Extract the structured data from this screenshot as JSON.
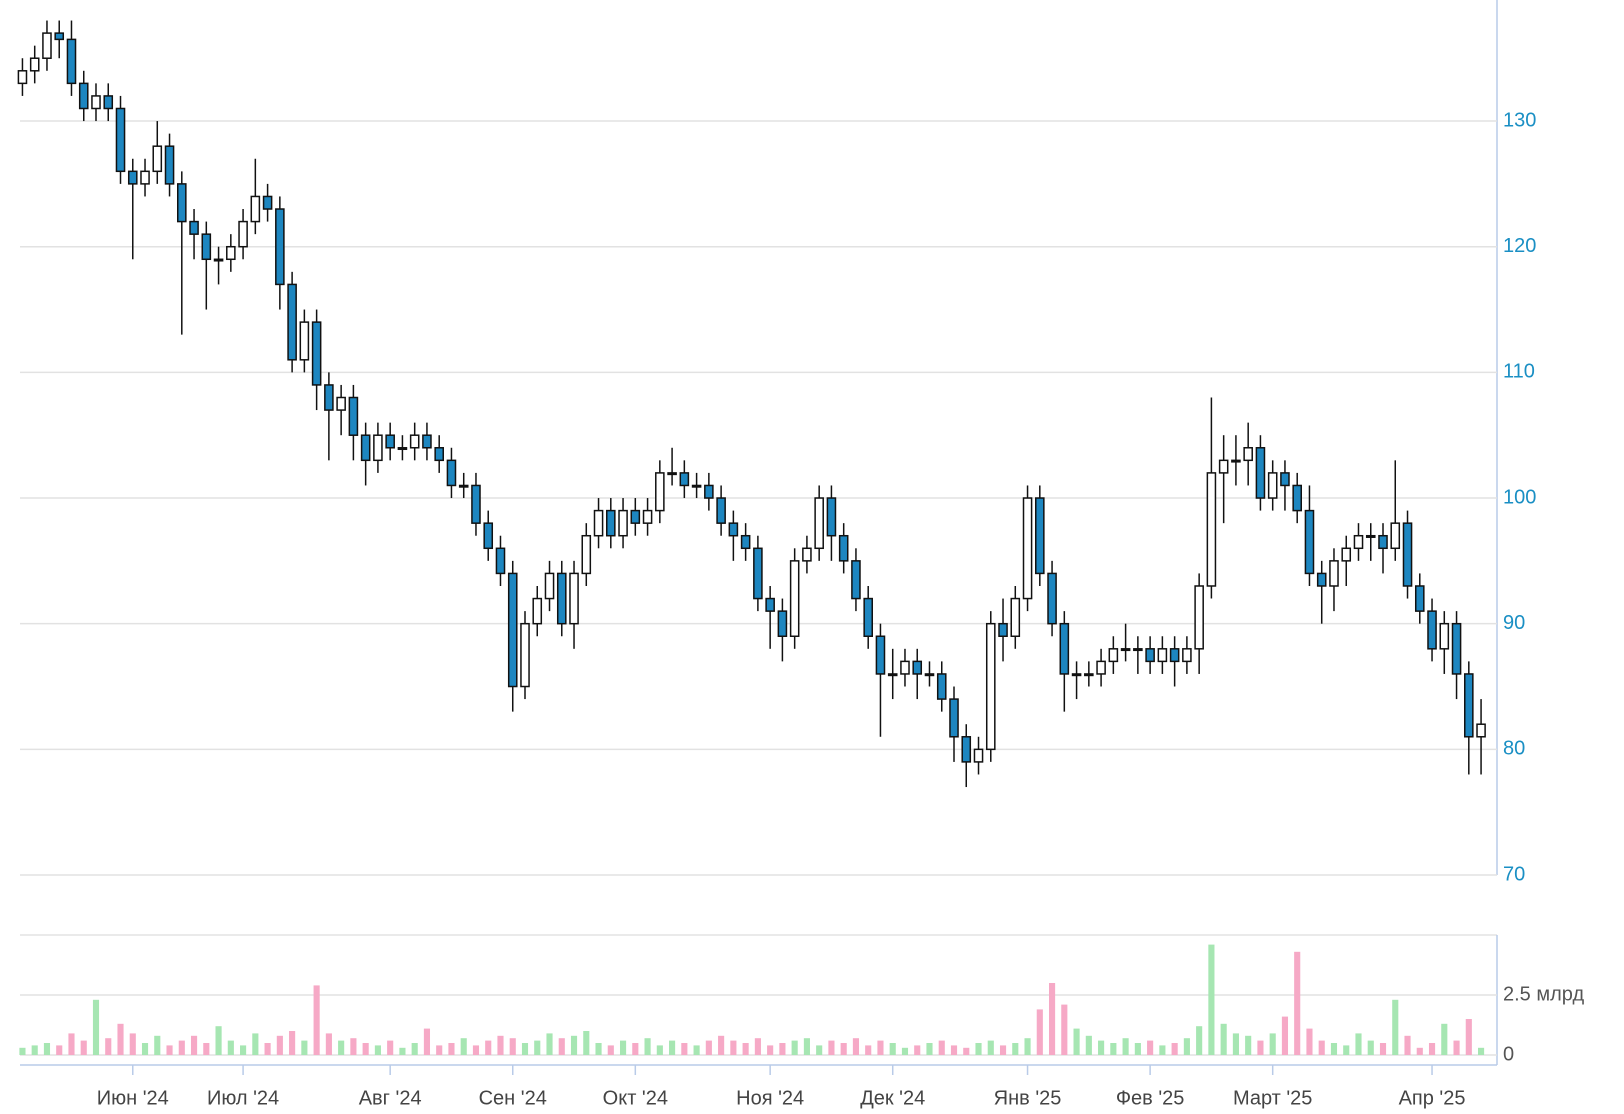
{
  "chart_data": {
    "type": "candlestick",
    "open": [
      133,
      134,
      135,
      137,
      136.5,
      133,
      131,
      132,
      131,
      126,
      125,
      126,
      128,
      125,
      122,
      121,
      119,
      119,
      120,
      122,
      124,
      123,
      117,
      111,
      114,
      109,
      107,
      108,
      105,
      103,
      105,
      104,
      104,
      105,
      104,
      103,
      101,
      101,
      98,
      96,
      94,
      85,
      90,
      92,
      94,
      90,
      94,
      97,
      99,
      97,
      99,
      98,
      99,
      102,
      102,
      101,
      101,
      100,
      98,
      97,
      96,
      92,
      91,
      89,
      95,
      96,
      100,
      97,
      95,
      92,
      89,
      86,
      86,
      87,
      86,
      86,
      84,
      81,
      79,
      80,
      90,
      89,
      92,
      100,
      94,
      90,
      86,
      86,
      86,
      87,
      88,
      88,
      88,
      87,
      88,
      87,
      88,
      93,
      102,
      103,
      103,
      104,
      100,
      102,
      101,
      99,
      94,
      93,
      95,
      96,
      97,
      97,
      96,
      98,
      93,
      91,
      88,
      90,
      86,
      81
    ],
    "high": [
      135,
      136,
      138,
      138,
      138,
      134,
      133,
      133,
      132,
      127,
      127,
      130,
      129,
      126,
      123,
      122,
      120,
      121,
      123,
      127,
      125,
      124,
      118,
      115,
      115,
      110,
      109,
      109,
      106,
      106,
      106,
      105,
      106,
      106,
      105,
      104,
      102,
      102,
      99,
      97,
      95,
      91,
      93,
      95,
      95,
      95,
      98,
      100,
      100,
      100,
      100,
      100,
      103,
      104,
      103,
      102,
      102,
      101,
      99,
      98,
      97,
      93,
      92,
      96,
      97,
      101,
      101,
      98,
      96,
      93,
      90,
      88,
      88,
      88,
      87,
      87,
      85,
      82,
      81,
      91,
      92,
      93,
      101,
      101,
      95,
      91,
      87,
      87,
      88,
      89,
      90,
      89,
      89,
      89,
      89,
      89,
      94,
      108,
      105,
      105,
      106,
      105,
      103,
      103,
      102,
      101,
      95,
      96,
      97,
      98,
      98,
      98,
      103,
      99,
      94,
      92,
      91,
      91,
      87,
      84
    ],
    "low": [
      132,
      133,
      134,
      135,
      132,
      130,
      130,
      130,
      125,
      119,
      124,
      125,
      124,
      113,
      119,
      115,
      117,
      118,
      119,
      121,
      122,
      115,
      110,
      110,
      107,
      103,
      105,
      103,
      101,
      102,
      103,
      103,
      103,
      103,
      102,
      100,
      100,
      97,
      95,
      93,
      83,
      84,
      89,
      91,
      89,
      88,
      93,
      96,
      96,
      96,
      97,
      97,
      98,
      101,
      100,
      100,
      99,
      97,
      95,
      95,
      91,
      88,
      87,
      88,
      94,
      95,
      95,
      94,
      91,
      88,
      81,
      84,
      85,
      84,
      85,
      83,
      79,
      77,
      78,
      79,
      87,
      88,
      91,
      93,
      89,
      83,
      84,
      85,
      85,
      86,
      87,
      86,
      86,
      86,
      85,
      86,
      86,
      92,
      98,
      101,
      101,
      99,
      99,
      99,
      98,
      93,
      90,
      91,
      93,
      95,
      95,
      94,
      95,
      92,
      90,
      87,
      86,
      84,
      78,
      78
    ],
    "close": [
      134,
      135,
      137,
      136.5,
      133,
      131,
      132,
      131,
      126,
      125,
      126,
      128,
      125,
      122,
      121,
      119,
      119,
      120,
      122,
      124,
      123,
      117,
      111,
      114,
      109,
      107,
      108,
      105,
      103,
      105,
      104,
      104,
      105,
      104,
      103,
      101,
      101,
      98,
      96,
      94,
      85,
      90,
      92,
      94,
      90,
      94,
      97,
      99,
      97,
      99,
      98,
      99,
      102,
      102,
      101,
      101,
      100,
      98,
      97,
      96,
      92,
      91,
      89,
      95,
      96,
      100,
      97,
      95,
      92,
      89,
      86,
      86,
      87,
      86,
      86,
      84,
      81,
      79,
      80,
      90,
      89,
      92,
      100,
      94,
      90,
      86,
      86,
      86,
      87,
      88,
      88,
      88,
      87,
      88,
      87,
      88,
      93,
      102,
      103,
      103,
      104,
      100,
      102,
      101,
      99,
      94,
      93,
      95,
      96,
      97,
      97,
      96,
      98,
      93,
      91,
      88,
      90,
      86,
      81,
      82
    ],
    "volume": [
      0.3,
      0.4,
      0.5,
      0.4,
      0.9,
      0.6,
      2.3,
      0.7,
      1.3,
      0.9,
      0.5,
      0.8,
      0.4,
      0.6,
      0.8,
      0.5,
      1.2,
      0.6,
      0.4,
      0.9,
      0.5,
      0.8,
      1.0,
      0.6,
      2.9,
      0.9,
      0.6,
      0.7,
      0.5,
      0.4,
      0.6,
      0.3,
      0.5,
      1.1,
      0.4,
      0.5,
      0.7,
      0.4,
      0.6,
      0.8,
      0.7,
      0.5,
      0.6,
      0.9,
      0.7,
      0.8,
      1.0,
      0.5,
      0.4,
      0.6,
      0.5,
      0.7,
      0.4,
      0.6,
      0.5,
      0.4,
      0.6,
      0.8,
      0.6,
      0.5,
      0.7,
      0.4,
      0.5,
      0.6,
      0.7,
      0.4,
      0.6,
      0.5,
      0.7,
      0.4,
      0.6,
      0.5,
      0.3,
      0.4,
      0.5,
      0.6,
      0.4,
      0.3,
      0.5,
      0.6,
      0.4,
      0.5,
      0.7,
      1.9,
      3.0,
      2.1,
      1.1,
      0.8,
      0.6,
      0.5,
      0.7,
      0.5,
      0.6,
      0.4,
      0.5,
      0.7,
      1.2,
      4.6,
      1.3,
      0.9,
      0.8,
      0.6,
      0.9,
      1.6,
      4.3,
      1.1,
      0.6,
      0.5,
      0.4,
      0.9,
      0.6,
      0.5,
      2.3,
      0.8,
      0.3,
      0.5,
      1.3,
      0.6,
      1.5,
      0.3
    ],
    "up_color": "#ffffff",
    "down_color": "#1d86c0",
    "volume_up_color": "#a6e6b2",
    "volume_down_color": "#f6a9c6",
    "ylim": [
      70,
      140
    ],
    "yticks": [
      70,
      80,
      90,
      100,
      110,
      120,
      130
    ],
    "volume_ylim": [
      0,
      5
    ],
    "volume_yticks": [
      0,
      {
        "value": 2.5,
        "label": "2.5 млрд"
      }
    ],
    "xlim": [
      -0.2,
      120.3
    ],
    "xticks": [
      {
        "value": 9,
        "label": "Июн '24"
      },
      {
        "value": 18,
        "label": "Июл '24"
      },
      {
        "value": 30,
        "label": "Авг '24"
      },
      {
        "value": 40,
        "label": "Сен '24"
      },
      {
        "value": 50,
        "label": "Окт '24"
      },
      {
        "value": 61,
        "label": "Ноя '24"
      },
      {
        "value": 71,
        "label": "Дек '24"
      },
      {
        "value": 82,
        "label": "Янв '25"
      },
      {
        "value": 92,
        "label": "Фев '25"
      },
      {
        "value": 102,
        "label": "Март '25"
      },
      {
        "value": 115,
        "label": "Апр '25"
      }
    ],
    "grid": true
  }
}
